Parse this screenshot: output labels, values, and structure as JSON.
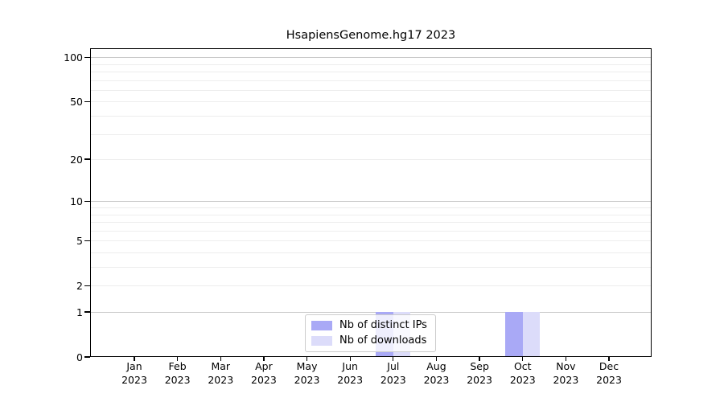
{
  "chart_data": {
    "type": "bar",
    "title": "HsapiensGenome.hg17 2023",
    "x_tick_labels": [
      [
        "Jan",
        "2023"
      ],
      [
        "Feb",
        "2023"
      ],
      [
        "Mar",
        "2023"
      ],
      [
        "Apr",
        "2023"
      ],
      [
        "May",
        "2023"
      ],
      [
        "Jun",
        "2023"
      ],
      [
        "Jul",
        "2023"
      ],
      [
        "Aug",
        "2023"
      ],
      [
        "Sep",
        "2023"
      ],
      [
        "Oct",
        "2023"
      ],
      [
        "Nov",
        "2023"
      ],
      [
        "Dec",
        "2023"
      ]
    ],
    "series": [
      {
        "name": "Nb of distinct IPs",
        "color": "#a9a9f6",
        "values": [
          0,
          0,
          0,
          0,
          0,
          0,
          1,
          0,
          0,
          1,
          0,
          0
        ]
      },
      {
        "name": "Nb of downloads",
        "color": "#dcdcfa",
        "values": [
          0,
          0,
          0,
          0,
          0,
          0,
          1,
          0,
          0,
          1,
          0,
          0
        ]
      }
    ],
    "y_axis": {
      "scale": "log1p",
      "tick_values": [
        100,
        50,
        20,
        10,
        5,
        2,
        1,
        0
      ],
      "tick_labels": [
        "100",
        "50",
        "20",
        "10",
        "5",
        "2",
        "1",
        "0"
      ],
      "major_grid_values": [
        1,
        10,
        100
      ],
      "minor_grid_values": [
        2,
        3,
        4,
        5,
        6,
        7,
        8,
        9,
        20,
        30,
        40,
        50,
        60,
        70,
        80,
        90
      ],
      "range_min": 0,
      "range_max_visible": 115
    },
    "legend": {
      "entries": [
        "Nb of distinct IPs",
        "Nb of downloads"
      ],
      "position": "lower-center"
    },
    "grid": true,
    "colors": {
      "axis": "#000000",
      "grid_minor": "#ededed",
      "grid_major": "#c9c9c9",
      "legend_border": "#cccccc",
      "background": "#ffffff"
    }
  }
}
